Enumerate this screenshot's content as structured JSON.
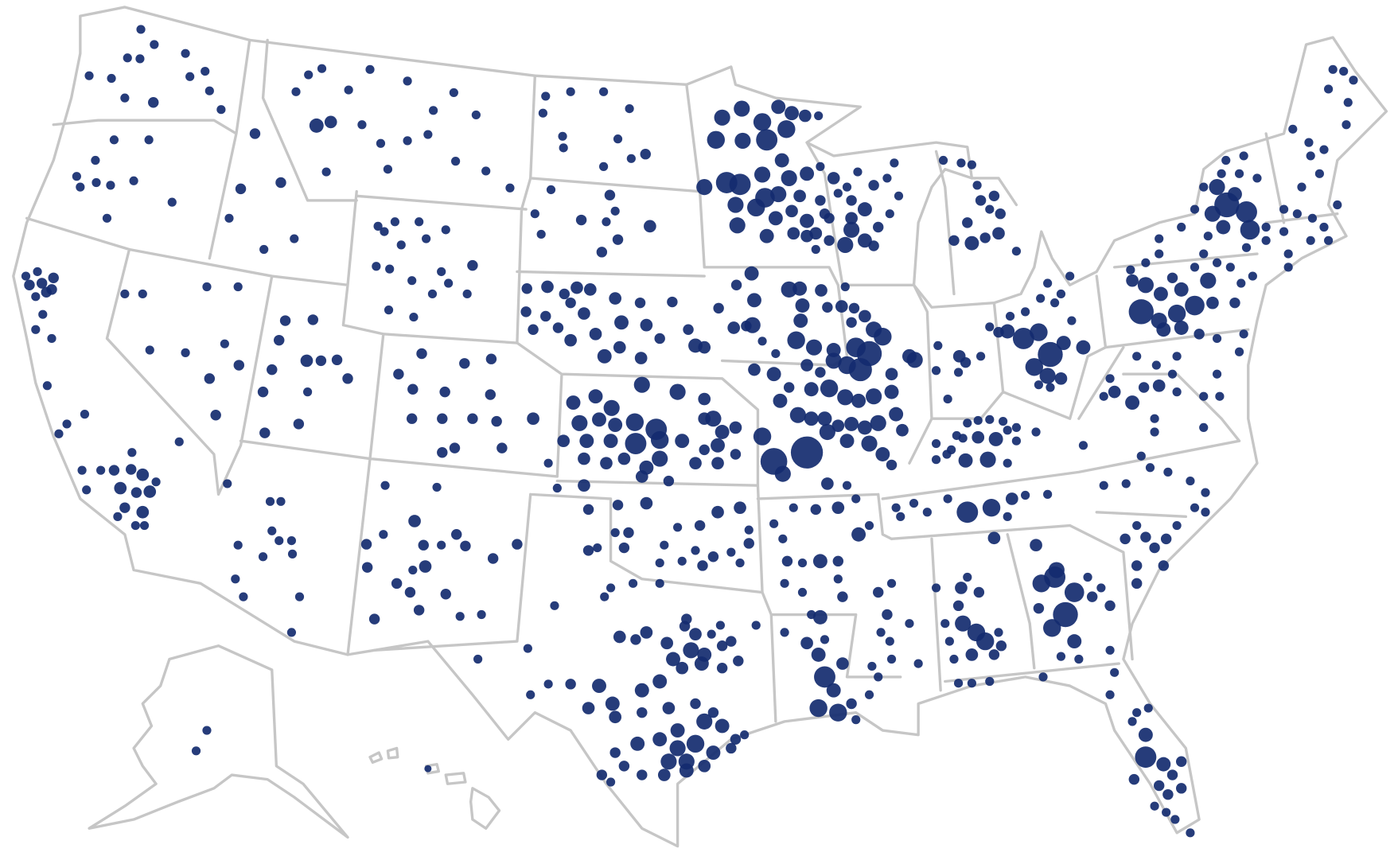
{
  "map": {
    "type": "bubble-map",
    "region": "United States",
    "dot_color": "#142b6f",
    "border_color": "#c6c6c6",
    "background": "#ffffff",
    "legend": null,
    "title": ""
  }
}
